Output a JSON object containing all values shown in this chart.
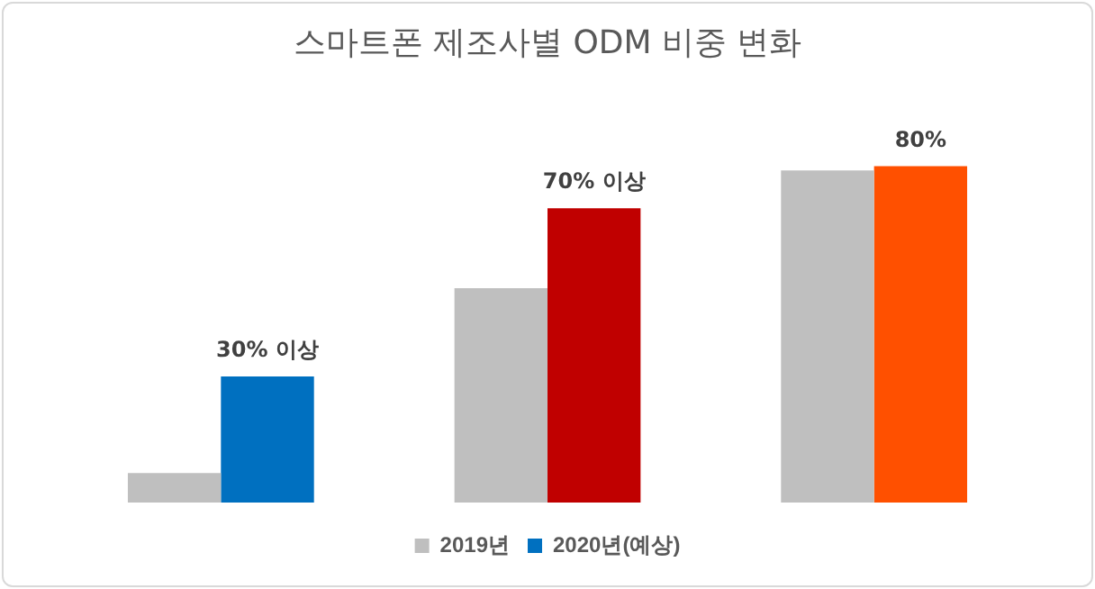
{
  "chart_data": {
    "type": "bar",
    "title": "스마트폰 제조사별 ODM 비중 변화",
    "categories": [
      null,
      null,
      null
    ],
    "series": [
      {
        "name": "2019년",
        "color": "#bfbfbf",
        "values": [
          7,
          51,
          79
        ]
      },
      {
        "name": "2020년(예상)",
        "color": "#0070c0",
        "colors": [
          "#0070c0",
          "#c00000",
          "#ff5000"
        ],
        "values": [
          30,
          70,
          80
        ],
        "value_labels": [
          "30% 이상",
          "70% 이상",
          "80%"
        ]
      }
    ],
    "tick_labels": false,
    "grid": false,
    "legend": "bottom"
  }
}
